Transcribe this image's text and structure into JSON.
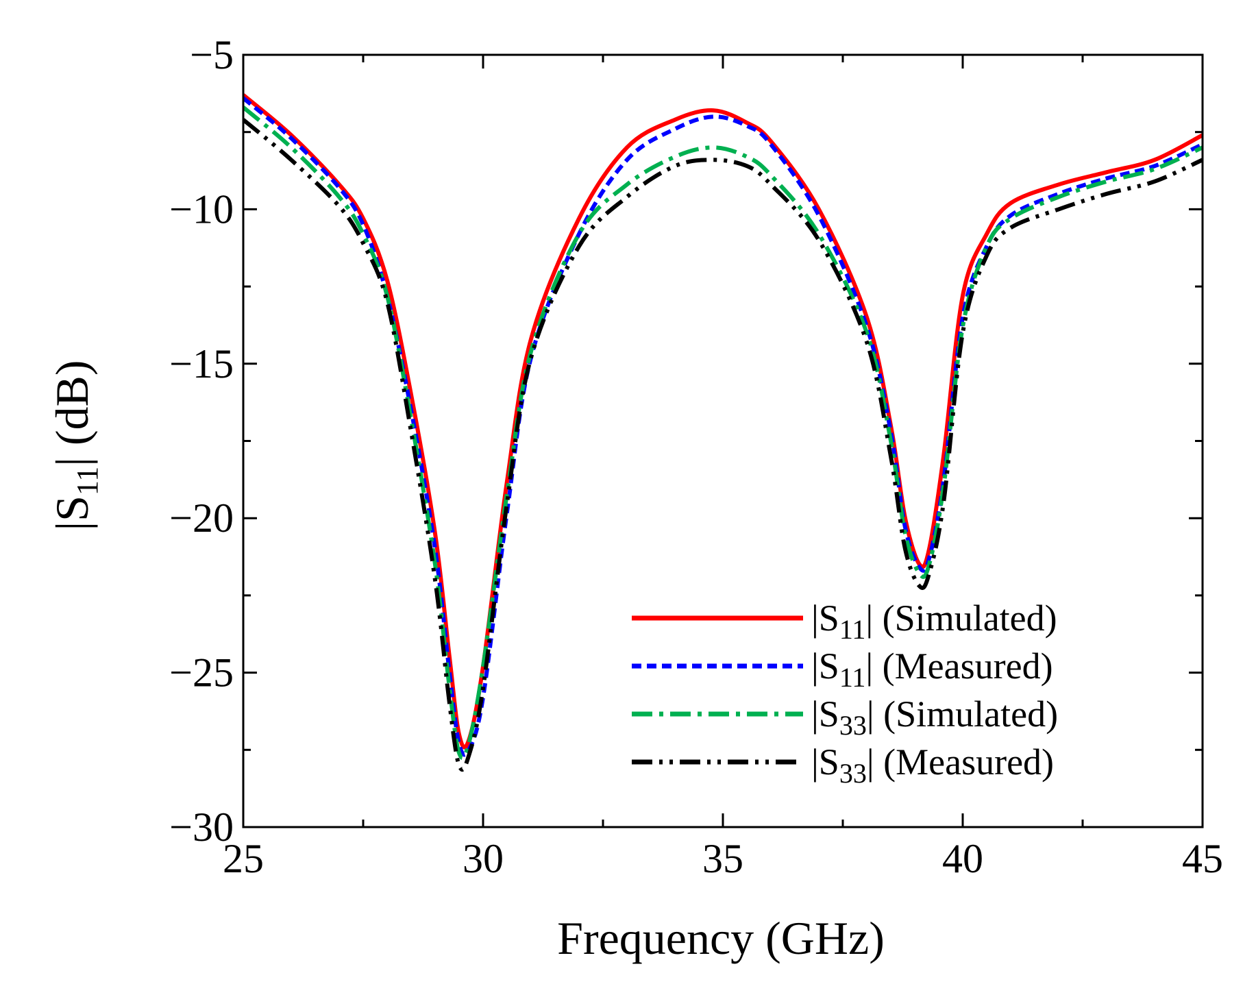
{
  "chart_data": {
    "type": "line",
    "title": "",
    "xlabel": "Frequency (GHz)",
    "ylabel": {
      "prefix": "|S",
      "sub": "11",
      "suffix": "| (dB)"
    },
    "xlim": [
      25,
      45
    ],
    "ylim": [
      -30,
      -5
    ],
    "xticks": [
      25,
      30,
      35,
      40,
      45
    ],
    "xtick_labels": [
      "25",
      "30",
      "35",
      "40",
      "45"
    ],
    "yticks": [
      -5,
      -10,
      -15,
      -20,
      -25,
      -30
    ],
    "ytick_labels": [
      "−5",
      "−10",
      "−15",
      "−20",
      "−25",
      "−30"
    ],
    "x_minor_step": 2.5,
    "y_minor_step": 2.5,
    "grid": false,
    "legend_position": "bottom-right",
    "series": [
      {
        "name": "|S11| (Simulated)",
        "legend": {
          "prefix": "|S",
          "sub": "11",
          "suffix": "| (Simulated)"
        },
        "color": "#ff0000",
        "style": "solid",
        "x": [
          25,
          26,
          27,
          27.5,
          28,
          28.5,
          29,
          29.3,
          29.5,
          29.7,
          30,
          30.5,
          31,
          32,
          33,
          34,
          34.8,
          35.5,
          36,
          37,
          38,
          38.5,
          38.8,
          39.1,
          39.3,
          39.6,
          40,
          40.5,
          41,
          42,
          43,
          44,
          45
        ],
        "y": [
          -6.3,
          -7.6,
          -9.2,
          -10.3,
          -12.3,
          -16.0,
          -20.5,
          -24.5,
          -27.0,
          -27.2,
          -24.8,
          -18.8,
          -14.2,
          -10.3,
          -8.0,
          -7.1,
          -6.8,
          -7.2,
          -7.8,
          -10.0,
          -13.5,
          -17.0,
          -20.0,
          -21.5,
          -21.0,
          -18.0,
          -12.8,
          -10.8,
          -9.8,
          -9.2,
          -8.8,
          -8.4,
          -7.6
        ]
      },
      {
        "name": "|S11| (Measured)",
        "legend": {
          "prefix": "|S",
          "sub": "11",
          "suffix": "| (Measured)"
        },
        "color": "#0000ff",
        "style": "dashed",
        "x": [
          25,
          26,
          27,
          27.5,
          28,
          28.5,
          29,
          29.3,
          29.5,
          29.7,
          30,
          30.5,
          31,
          32,
          33,
          34,
          34.8,
          35.5,
          36,
          37,
          38,
          38.5,
          38.8,
          39.1,
          39.3,
          39.6,
          40,
          40.5,
          41,
          42,
          43,
          44,
          45
        ],
        "y": [
          -6.4,
          -7.7,
          -9.3,
          -10.5,
          -12.8,
          -16.5,
          -21.0,
          -25.0,
          -27.3,
          -27.5,
          -25.8,
          -19.8,
          -14.8,
          -10.8,
          -8.4,
          -7.4,
          -7.0,
          -7.3,
          -7.9,
          -10.2,
          -13.8,
          -17.2,
          -20.3,
          -21.6,
          -21.3,
          -18.8,
          -13.5,
          -11.2,
          -10.2,
          -9.5,
          -9.0,
          -8.6,
          -7.9
        ]
      },
      {
        "name": "|S33| (Simulated)",
        "legend": {
          "prefix": "|S",
          "sub": "33",
          "suffix": "| (Simulated)"
        },
        "color": "#00b050",
        "style": "dashdot",
        "x": [
          25,
          26,
          27,
          27.5,
          28,
          28.5,
          29,
          29.3,
          29.5,
          29.7,
          30,
          30.5,
          31,
          32,
          33,
          34,
          34.8,
          35.5,
          36,
          37,
          38,
          38.5,
          38.8,
          39.1,
          39.3,
          39.6,
          40,
          40.5,
          41,
          42,
          43,
          44,
          45
        ],
        "y": [
          -6.7,
          -8.0,
          -9.6,
          -10.8,
          -12.8,
          -16.8,
          -21.5,
          -25.5,
          -27.6,
          -27.3,
          -24.8,
          -19.2,
          -14.6,
          -10.8,
          -9.2,
          -8.3,
          -8.0,
          -8.3,
          -8.9,
          -10.8,
          -14.0,
          -17.5,
          -20.5,
          -21.8,
          -21.5,
          -19.0,
          -13.8,
          -11.2,
          -10.3,
          -9.6,
          -9.1,
          -8.7,
          -8.0
        ]
      },
      {
        "name": "|S33| (Measured)",
        "legend": {
          "prefix": "|S",
          "sub": "33",
          "suffix": "| (Measured)"
        },
        "color": "#000000",
        "style": "dashdotdot",
        "x": [
          25,
          26,
          27,
          27.5,
          28,
          28.5,
          29,
          29.3,
          29.5,
          29.7,
          30,
          30.5,
          31,
          32,
          33,
          34,
          34.8,
          35.5,
          36,
          37,
          38,
          38.5,
          38.8,
          39.1,
          39.3,
          39.6,
          40,
          40.5,
          41,
          42,
          43,
          44,
          45
        ],
        "y": [
          -7.1,
          -8.4,
          -9.9,
          -11.1,
          -13.0,
          -17.2,
          -22.0,
          -26.0,
          -28.0,
          -27.7,
          -25.5,
          -19.5,
          -14.8,
          -11.2,
          -9.6,
          -8.6,
          -8.4,
          -8.6,
          -9.2,
          -11.0,
          -14.3,
          -18.0,
          -21.0,
          -22.2,
          -21.8,
          -19.5,
          -14.0,
          -11.5,
          -10.6,
          -10.0,
          -9.5,
          -9.1,
          -8.4
        ]
      }
    ]
  }
}
